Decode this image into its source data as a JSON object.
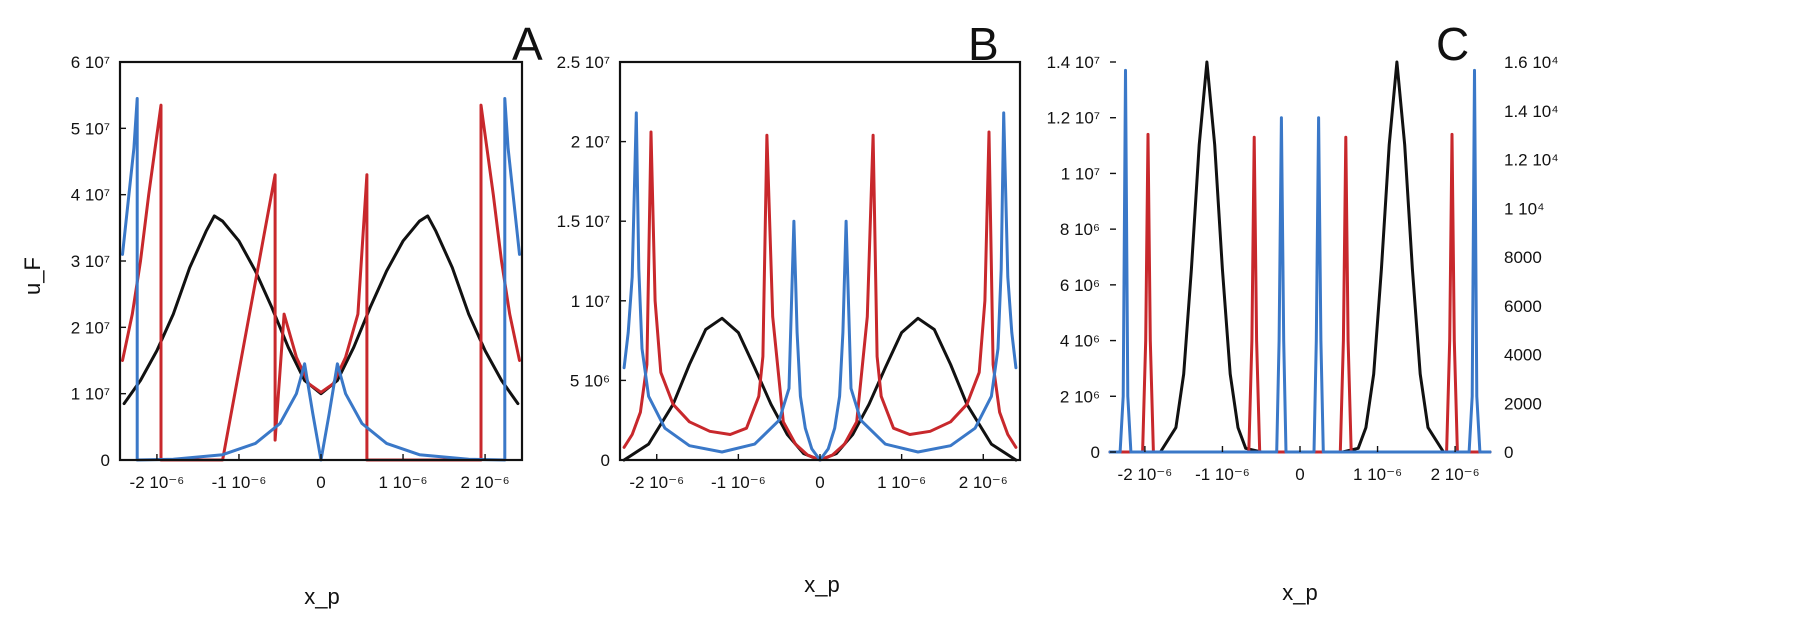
{
  "colors": {
    "black": "#111111",
    "red": "#c8282c",
    "blue": "#3a78c8"
  },
  "chart_data": [
    {
      "type": "line",
      "panel_label": "A",
      "ylabel": "u_F",
      "xlabel": "x_p",
      "xlim": [
        -2.45e-06,
        2.45e-06
      ],
      "ylim": [
        0,
        60000000.0
      ],
      "x_ticks": [
        {
          "value": -2e-06,
          "label": "-2 10⁻⁶"
        },
        {
          "value": -1e-06,
          "label": "-1 10⁻⁶"
        },
        {
          "value": 0,
          "label": "0"
        },
        {
          "value": 1e-06,
          "label": "1 10⁻⁶"
        },
        {
          "value": 2e-06,
          "label": "2 10⁻⁶"
        }
      ],
      "y_ticks": [
        {
          "value": 0,
          "label": "0"
        },
        {
          "value": 10000000.0,
          "label": "1 10⁷"
        },
        {
          "value": 20000000.0,
          "label": "2 10⁷"
        },
        {
          "value": 30000000.0,
          "label": "3 10⁷"
        },
        {
          "value": 40000000.0,
          "label": "4 10⁷"
        },
        {
          "value": 50000000.0,
          "label": "5 10⁷"
        },
        {
          "value": 60000000.0,
          "label": "6 10⁷"
        }
      ],
      "series": [
        {
          "color": "black",
          "x": [
            -2.4e-06,
            -2.2e-06,
            -2e-06,
            -1.8e-06,
            -1.6e-06,
            -1.4e-06,
            -1.3e-06,
            -1.2e-06,
            -1e-06,
            -8e-07,
            -6e-07,
            -4e-07,
            -2e-07,
            0,
            2e-07,
            4e-07,
            6e-07,
            8e-07,
            1e-06,
            1.2e-06,
            1.3e-06,
            1.4e-06,
            1.6e-06,
            1.8e-06,
            2e-06,
            2.2e-06,
            2.4e-06
          ],
          "y": [
            8500000.0,
            12000000.0,
            16500000.0,
            22000000.0,
            29000000.0,
            34500000.0,
            36800000.0,
            36000000.0,
            33000000.0,
            28500000.0,
            23000000.0,
            17000000.0,
            12000000.0,
            10000000.0,
            12000000.0,
            17000000.0,
            23000000.0,
            28500000.0,
            33000000.0,
            36000000.0,
            36800000.0,
            34500000.0,
            29000000.0,
            22000000.0,
            16500000.0,
            12000000.0,
            8500000.0
          ]
        },
        {
          "color": "red",
          "x": [
            -2.42e-06,
            -2.3e-06,
            -2.2e-06,
            -2.1e-06,
            -2e-06,
            -1.95e-06,
            -1.95e-06,
            -1.2e-06,
            -5.6e-07,
            -5.6e-07,
            -4.5e-07,
            -3e-07,
            -1.5e-07,
            0,
            1.5e-07,
            3e-07,
            4.5e-07,
            5.6e-07,
            5.6e-07,
            1.2e-06,
            1.95e-06,
            1.95e-06,
            2e-06,
            2.1e-06,
            2.2e-06,
            2.3e-06,
            2.42e-06
          ],
          "y": [
            15000000.0,
            22000000.0,
            30000000.0,
            40000000.0,
            49000000.0,
            53500000.0,
            0,
            0,
            43000000.0,
            3000000.0,
            22000000.0,
            15500000.0,
            11500000.0,
            10200000.0,
            11500000.0,
            15500000.0,
            22000000.0,
            43000000.0,
            0,
            0,
            0,
            53500000.0,
            49000000.0,
            40000000.0,
            30000000.0,
            22000000.0,
            15000000.0
          ]
        },
        {
          "color": "blue",
          "x": [
            -2.42e-06,
            -2.35e-06,
            -2.28e-06,
            -2.24e-06,
            -2.24e-06,
            -1.8e-06,
            -1.2e-06,
            -8e-07,
            -5e-07,
            -3e-07,
            -2e-07,
            -1e-07,
            0,
            1e-07,
            2e-07,
            3e-07,
            5e-07,
            8e-07,
            1.2e-06,
            1.8e-06,
            2.24e-06,
            2.24e-06,
            2.28e-06,
            2.35e-06,
            2.42e-06
          ],
          "y": [
            31000000.0,
            39000000.0,
            47000000.0,
            54500000.0,
            0,
            100000.0,
            800000.0,
            2500000.0,
            5500000.0,
            10000000.0,
            14500000.0,
            7000000.0,
            0,
            7000000.0,
            14500000.0,
            10000000.0,
            5500000.0,
            2500000.0,
            800000.0,
            100000.0,
            0,
            54500000.0,
            47000000.0,
            39000000.0,
            31000000.0
          ]
        }
      ]
    },
    {
      "type": "line",
      "panel_label": "B",
      "xlabel": "x_p",
      "xlim": [
        -2.45e-06,
        2.45e-06
      ],
      "ylim": [
        0,
        25000000.0
      ],
      "x_ticks": [
        {
          "value": -2e-06,
          "label": "-2 10⁻⁶"
        },
        {
          "value": -1e-06,
          "label": "-1 10⁻⁶"
        },
        {
          "value": 0,
          "label": "0"
        },
        {
          "value": 1e-06,
          "label": "1 10⁻⁶"
        },
        {
          "value": 2e-06,
          "label": "2 10⁻⁶"
        }
      ],
      "y_ticks": [
        {
          "value": 0,
          "label": "0"
        },
        {
          "value": 5000000.0,
          "label": "5 10⁶"
        },
        {
          "value": 10000000.0,
          "label": "1 10⁷"
        },
        {
          "value": 15000000.0,
          "label": "1.5 10⁷"
        },
        {
          "value": 20000000.0,
          "label": "2 10⁷"
        },
        {
          "value": 25000000.0,
          "label": "2.5 10⁷"
        }
      ],
      "series": [
        {
          "color": "black",
          "x": [
            -2.4e-06,
            -2.1e-06,
            -1.8e-06,
            -1.6e-06,
            -1.4e-06,
            -1.2e-06,
            -1e-06,
            -8e-07,
            -6e-07,
            -4e-07,
            -2e-07,
            0,
            2e-07,
            4e-07,
            6e-07,
            8e-07,
            1e-06,
            1.2e-06,
            1.4e-06,
            1.6e-06,
            1.8e-06,
            2.1e-06,
            2.4e-06
          ],
          "y": [
            0,
            1000000.0,
            3500000.0,
            6000000.0,
            8200000.0,
            8900000.0,
            8000000.0,
            5800000.0,
            3500000.0,
            1600000.0,
            400000.0,
            0,
            400000.0,
            1600000.0,
            3500000.0,
            5800000.0,
            8000000.0,
            8900000.0,
            8200000.0,
            6000000.0,
            3500000.0,
            1000000.0,
            0
          ]
        },
        {
          "color": "red",
          "x": [
            -2.4e-06,
            -2.3e-06,
            -2.2e-06,
            -2.12e-06,
            -2.07e-06,
            -2.02e-06,
            -1.95e-06,
            -1.8e-06,
            -1.6e-06,
            -1.35e-06,
            -1.1e-06,
            -9e-07,
            -7.5e-07,
            -7e-07,
            -6.5e-07,
            -5.8e-07,
            -4.5e-07,
            -3e-07,
            -1.5e-07,
            0,
            1.5e-07,
            3e-07,
            4.5e-07,
            5.8e-07,
            6.5e-07,
            7e-07,
            7.5e-07,
            9e-07,
            1.1e-06,
            1.35e-06,
            1.6e-06,
            1.8e-06,
            1.95e-06,
            2.02e-06,
            2.07e-06,
            2.12e-06,
            2.2e-06,
            2.3e-06,
            2.4e-06
          ],
          "y": [
            800000.0,
            1600000.0,
            3000000.0,
            6000000.0,
            20600000.0,
            10000000.0,
            5500000.0,
            3500000.0,
            2400000.0,
            1800000.0,
            1600000.0,
            2000000.0,
            4000000.0,
            6500000.0,
            20400000.0,
            9000000.0,
            2400000.0,
            1000000.0,
            300000.0,
            0,
            300000.0,
            1000000.0,
            2400000.0,
            9000000.0,
            20400000.0,
            6500000.0,
            4000000.0,
            2000000.0,
            1600000.0,
            1800000.0,
            2400000.0,
            3500000.0,
            5500000.0,
            10000000.0,
            20600000.0,
            6000000.0,
            3000000.0,
            1600000.0,
            800000.0
          ]
        },
        {
          "color": "blue",
          "x": [
            -2.4e-06,
            -2.35e-06,
            -2.3e-06,
            -2.25e-06,
            -2.22e-06,
            -2.18e-06,
            -2.1e-06,
            -1.9e-06,
            -1.6e-06,
            -1.2e-06,
            -8e-07,
            -5e-07,
            -3.8e-07,
            -3.2e-07,
            -2.8e-07,
            -2.4e-07,
            -1.8e-07,
            -1e-07,
            0,
            1e-07,
            1.8e-07,
            2.4e-07,
            2.8e-07,
            3.2e-07,
            3.8e-07,
            5e-07,
            8e-07,
            1.2e-06,
            1.6e-06,
            1.9e-06,
            2.1e-06,
            2.18e-06,
            2.22e-06,
            2.25e-06,
            2.3e-06,
            2.35e-06,
            2.4e-06
          ],
          "y": [
            5800000.0,
            8000000.0,
            11500000.0,
            21800000.0,
            12000000.0,
            7000000.0,
            4000000.0,
            2000000.0,
            900000.0,
            500000.0,
            1000000.0,
            2500000.0,
            4500000.0,
            15000000.0,
            8000000.0,
            4000000.0,
            2000000.0,
            700000.0,
            0,
            700000.0,
            2000000.0,
            4000000.0,
            8000000.0,
            15000000.0,
            4500000.0,
            2500000.0,
            1000000.0,
            500000.0,
            900000.0,
            2000000.0,
            4000000.0,
            7000000.0,
            12000000.0,
            21800000.0,
            11500000.0,
            8000000.0,
            5800000.0
          ]
        }
      ]
    },
    {
      "type": "line",
      "panel_label": "C",
      "xlabel": "x_p",
      "xlim": [
        -2.45e-06,
        2.45e-06
      ],
      "ylim": [
        0,
        14000000.0
      ],
      "y2lim": [
        0,
        16000
      ],
      "x_ticks": [
        {
          "value": -2e-06,
          "label": "-2 10⁻⁶"
        },
        {
          "value": -1e-06,
          "label": "-1 10⁻⁶"
        },
        {
          "value": 0,
          "label": "0"
        },
        {
          "value": 1e-06,
          "label": "1 10⁻⁶"
        },
        {
          "value": 2e-06,
          "label": "2 10⁻⁶"
        }
      ],
      "y_ticks": [
        {
          "value": 0,
          "label": "0"
        },
        {
          "value": 2000000.0,
          "label": "2 10⁶"
        },
        {
          "value": 4000000.0,
          "label": "4 10⁶"
        },
        {
          "value": 6000000.0,
          "label": "6 10⁶"
        },
        {
          "value": 8000000.0,
          "label": "8 10⁶"
        },
        {
          "value": 10000000.0,
          "label": "1 10⁷"
        },
        {
          "value": 12000000.0,
          "label": "1.2 10⁷"
        },
        {
          "value": 14000000.0,
          "label": "1.4 10⁷"
        }
      ],
      "y2_ticks": [
        {
          "value": 0,
          "label": "0"
        },
        {
          "value": 2000,
          "label": "2000"
        },
        {
          "value": 4000,
          "label": "4000"
        },
        {
          "value": 6000,
          "label": "6000"
        },
        {
          "value": 8000,
          "label": "8000"
        },
        {
          "value": 10000,
          "label": "1 10⁴"
        },
        {
          "value": 12000,
          "label": "1.2 10⁴"
        },
        {
          "value": 14000,
          "label": "1.4 10⁴"
        },
        {
          "value": 16000,
          "label": "1.6 10⁴"
        }
      ],
      "series": [
        {
          "color": "black",
          "axis": "y2",
          "x": [
            -2.45e-06,
            -1.8e-06,
            -1.6e-06,
            -1.5e-06,
            -1.4e-06,
            -1.3e-06,
            -1.2e-06,
            -1.1e-06,
            -1e-06,
            -9e-07,
            -8e-07,
            -7e-07,
            -5e-07,
            0,
            5.5e-07,
            7.5e-07,
            8.5e-07,
            9.5e-07,
            1.05e-06,
            1.15e-06,
            1.25e-06,
            1.35e-06,
            1.45e-06,
            1.55e-06,
            1.65e-06,
            1.85e-06,
            2.45e-06
          ],
          "y": [
            0,
            0,
            1000,
            3200,
            7500,
            12600,
            16000,
            12600,
            7500,
            3200,
            1000,
            150,
            0,
            0,
            0,
            150,
            1000,
            3200,
            7500,
            12600,
            16000,
            12600,
            7500,
            3200,
            1000,
            0,
            0
          ]
        },
        {
          "color": "red",
          "axis": "y",
          "x": [
            -2.45e-06,
            -2.03e-06,
            -1.99e-06,
            -1.96e-06,
            -1.93e-06,
            -1.89e-06,
            -8e-07,
            -6.6e-07,
            -6.2e-07,
            -5.9e-07,
            -5.6e-07,
            -5.2e-07,
            5.2e-07,
            5.6e-07,
            5.9e-07,
            6.2e-07,
            6.6e-07,
            1.89e-06,
            1.93e-06,
            1.96e-06,
            1.99e-06,
            2.03e-06,
            2.45e-06
          ],
          "y": [
            0,
            0,
            4000000.0,
            11400000.0,
            4000000.0,
            0,
            0,
            0,
            4000000.0,
            11300000.0,
            4000000.0,
            0,
            0,
            4000000.0,
            11300000.0,
            4000000.0,
            0,
            0,
            4000000.0,
            11400000.0,
            4000000.0,
            0,
            0
          ]
        },
        {
          "color": "blue",
          "axis": "y",
          "x": [
            -2.45e-06,
            -2.32e-06,
            -2.28e-06,
            -2.25e-06,
            -2.22e-06,
            -2.18e-06,
            -4e-07,
            -3e-07,
            -2.7e-07,
            -2.4e-07,
            -2.1e-07,
            -1.8e-07,
            1.8e-07,
            2.1e-07,
            2.4e-07,
            2.7e-07,
            3e-07,
            2.18e-06,
            2.22e-06,
            2.25e-06,
            2.28e-06,
            2.32e-06,
            2.45e-06
          ],
          "y": [
            0,
            0,
            2000000.0,
            13700000.0,
            2000000.0,
            0,
            0,
            0,
            4000000.0,
            12000000.0,
            4000000.0,
            0,
            0,
            4000000.0,
            12000000.0,
            4000000.0,
            0,
            0,
            2000000.0,
            13700000.0,
            2000000.0,
            0,
            0
          ]
        }
      ]
    }
  ]
}
